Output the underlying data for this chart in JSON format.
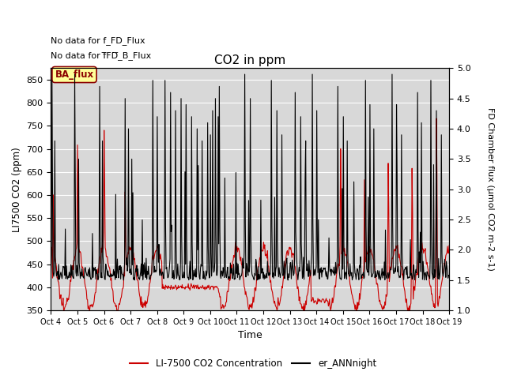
{
  "title": "CO2 in ppm",
  "xlabel": "Time",
  "ylabel_left": "LI7500 CO2 (ppm)",
  "ylabel_right": "FD Chamber flux (μmol CO2 m-2 s-1)",
  "ylim_left": [
    350,
    875
  ],
  "ylim_right": [
    1.0,
    5.0
  ],
  "yticks_left": [
    350,
    400,
    450,
    500,
    550,
    600,
    650,
    700,
    750,
    800,
    850
  ],
  "yticks_right": [
    1.0,
    1.5,
    2.0,
    2.5,
    3.0,
    3.5,
    4.0,
    4.5,
    5.0
  ],
  "xtick_labels": [
    "Oct 4",
    "Oct 5",
    "Oct 6",
    "Oct 7",
    "Oct 8",
    "Oct 9",
    "Oct 10",
    "Oct 11",
    "Oct 12",
    "Oct 13",
    "Oct 14",
    "Oct 15",
    "Oct 16",
    "Oct 17",
    "Oct 18",
    "Oct 19"
  ],
  "annotation_texts": [
    "No data for f_FD_Flux",
    "No data for f̅FD̅_B_Flux"
  ],
  "ba_flux_label": "BA_flux",
  "legend_entries": [
    "LI-7500 CO2 Concentration",
    "er_ANNnight"
  ],
  "legend_colors": [
    "#cc0000",
    "#000000"
  ],
  "plot_bg_color": "#d8d8d8",
  "ba_flux_box_color": "#ffff99",
  "ba_flux_box_edge": "#8b0000",
  "ba_flux_text_color": "#8b0000",
  "line_color_red": "#cc0000",
  "line_color_black": "#000000",
  "n_days": 15,
  "pts_per_day": 48
}
